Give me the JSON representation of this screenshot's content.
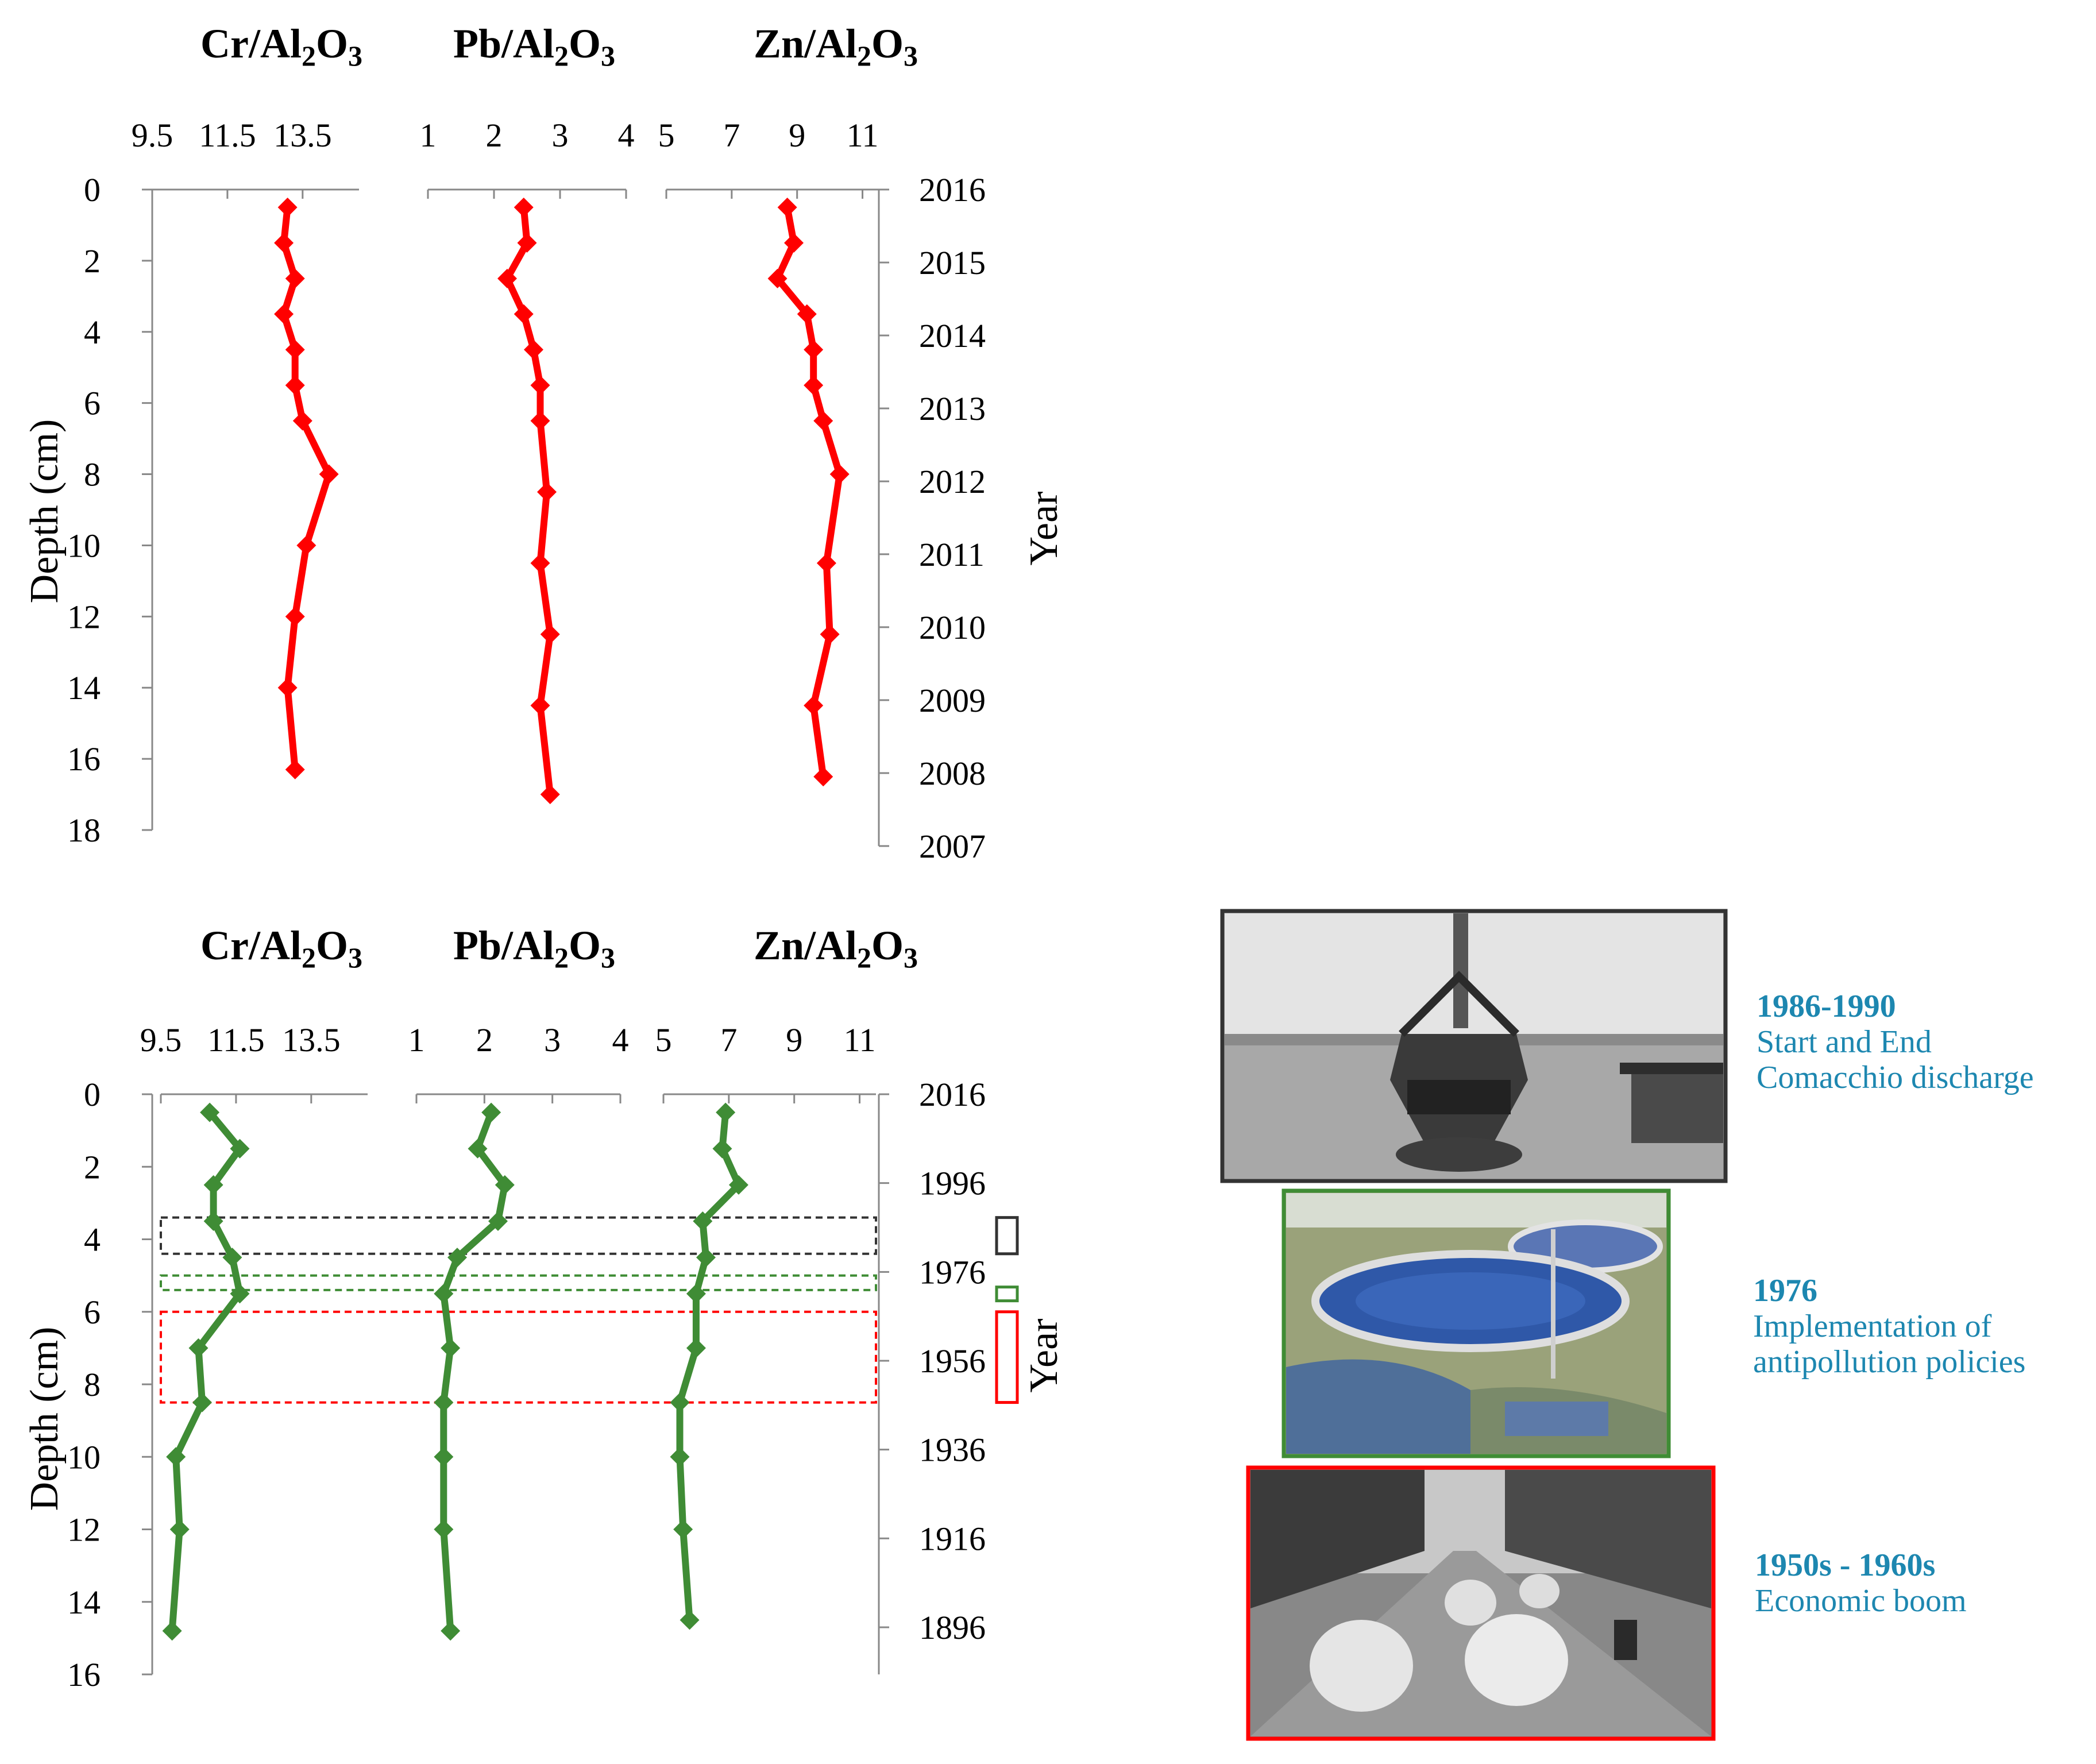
{
  "chart_data": [
    {
      "type": "line",
      "panel": "top",
      "color": "#ff0000",
      "ylabel": "Depth (cm)",
      "ylim": [
        0,
        18
      ],
      "yticks": [
        0,
        2,
        4,
        6,
        8,
        10,
        12,
        14,
        16,
        18
      ],
      "y2label": "Year",
      "y2ticks": [
        {
          "label": "2016",
          "depth": 0
        },
        {
          "label": "2015",
          "depth": 2.05
        },
        {
          "label": "2014",
          "depth": 4.1
        },
        {
          "label": "2013",
          "depth": 6.15
        },
        {
          "label": "2012",
          "depth": 8.2
        },
        {
          "label": "2011",
          "depth": 10.25
        },
        {
          "label": "2010",
          "depth": 12.3
        },
        {
          "label": "2009",
          "depth": 14.35
        },
        {
          "label": "2008",
          "depth": 16.4
        },
        {
          "label": "2007",
          "depth": 18.45
        }
      ],
      "series": [
        {
          "title": "Cr/Al₂O₃",
          "xlim": [
            9.5,
            15
          ],
          "xticks": [
            "9.5",
            "11.5",
            "13.5"
          ],
          "xtick_values": [
            9.5,
            11.5,
            13.5
          ],
          "depth": [
            0.5,
            1.5,
            2.5,
            3.5,
            4.5,
            5.5,
            6.5,
            8,
            10,
            12,
            14,
            16.3
          ],
          "x": [
            13.1,
            13.0,
            13.3,
            13.0,
            13.3,
            13.3,
            13.5,
            14.2,
            13.6,
            13.3,
            13.1,
            13.3
          ]
        },
        {
          "title": "Pb/Al₂O₃",
          "xlim": [
            1,
            4
          ],
          "xticks": [
            "1",
            "2",
            "3",
            "4"
          ],
          "xtick_values": [
            1,
            2,
            3,
            4
          ],
          "depth": [
            0.5,
            1.5,
            2.5,
            3.5,
            4.5,
            5.5,
            6.5,
            8.5,
            10.5,
            12.5,
            14.5,
            17
          ],
          "x": [
            2.45,
            2.5,
            2.2,
            2.45,
            2.6,
            2.7,
            2.7,
            2.8,
            2.7,
            2.85,
            2.7,
            2.85
          ]
        },
        {
          "title": "Zn/Al₂O₃",
          "xlim": [
            5,
            11.5
          ],
          "xticks": [
            "5",
            "7",
            "9",
            "11"
          ],
          "xtick_values": [
            5,
            7,
            9,
            11
          ],
          "depth": [
            0.5,
            1.5,
            2.5,
            3.5,
            4.5,
            5.5,
            6.5,
            8,
            10.5,
            12.5,
            14.5,
            16.5
          ],
          "x": [
            8.7,
            8.9,
            8.4,
            9.3,
            9.5,
            9.5,
            9.8,
            10.3,
            9.9,
            10.0,
            9.5,
            9.8
          ]
        }
      ]
    },
    {
      "type": "line",
      "panel": "bottom",
      "color": "#3f8c35",
      "ylabel": "Depth (cm)",
      "ylim": [
        0,
        16
      ],
      "yticks": [
        0,
        2,
        4,
        6,
        8,
        10,
        12,
        14,
        16
      ],
      "y2label": "Year",
      "y2ticks": [
        {
          "label": "2016",
          "depth": 0
        },
        {
          "label": "1996",
          "depth": 2.45
        },
        {
          "label": "1976",
          "depth": 4.9
        },
        {
          "label": "1956",
          "depth": 7.35
        },
        {
          "label": "1936",
          "depth": 9.8
        },
        {
          "label": "1916",
          "depth": 12.25
        },
        {
          "label": "1896",
          "depth": 14.7
        }
      ],
      "series": [
        {
          "title": "Cr/Al₂O₃",
          "xlim": [
            9.5,
            15
          ],
          "xticks": [
            "9.5",
            "11.5",
            "13.5"
          ],
          "xtick_values": [
            9.5,
            11.5,
            13.5
          ],
          "depth": [
            0.5,
            1.5,
            2.5,
            3.5,
            4.5,
            5.5,
            7,
            8.5,
            10,
            12,
            14.8
          ],
          "x": [
            10.8,
            11.6,
            10.9,
            10.9,
            11.4,
            11.6,
            10.5,
            10.6,
            9.9,
            10.0,
            9.8
          ]
        },
        {
          "title": "Pb/Al₂O₃",
          "xlim": [
            1,
            4
          ],
          "xticks": [
            "1",
            "2",
            "3",
            "4"
          ],
          "xtick_values": [
            1,
            2,
            3,
            4
          ],
          "depth": [
            0.5,
            1.5,
            2.5,
            3.5,
            4.5,
            5.5,
            7,
            8.5,
            10,
            12,
            14.8
          ],
          "x": [
            2.1,
            1.9,
            2.3,
            2.2,
            1.6,
            1.4,
            1.5,
            1.4,
            1.4,
            1.4,
            1.5
          ]
        },
        {
          "title": "Zn/Al₂O₃",
          "xlim": [
            5,
            11.5
          ],
          "xticks": [
            "5",
            "7",
            "9",
            "11"
          ],
          "xtick_values": [
            5,
            7,
            9,
            11
          ],
          "depth": [
            0.5,
            1.5,
            2.5,
            3.5,
            4.5,
            5.5,
            7,
            8.5,
            10,
            12,
            14.5
          ],
          "x": [
            6.9,
            6.8,
            7.3,
            6.2,
            6.3,
            6.0,
            6.0,
            5.5,
            5.5,
            5.6,
            5.8
          ]
        }
      ],
      "bands": [
        {
          "depth": [
            3.4,
            4.4
          ],
          "color": "#333333"
        },
        {
          "depth": [
            5.0,
            5.4
          ],
          "color": "#3f8c35"
        },
        {
          "depth": [
            6.0,
            8.5
          ],
          "color": "#ff0000"
        }
      ]
    }
  ],
  "captions": [
    {
      "title": "1986-1990",
      "lines": [
        "Start and End",
        "Comacchio discharge"
      ],
      "frame_color": "#333333"
    },
    {
      "title": "1976",
      "lines": [
        "Implementation of",
        "antipollution policies"
      ],
      "frame_color": "#3f8c35"
    },
    {
      "title": "1950s - 1960s",
      "lines": [
        "Economic boom"
      ],
      "frame_color": "#ff0000"
    }
  ]
}
